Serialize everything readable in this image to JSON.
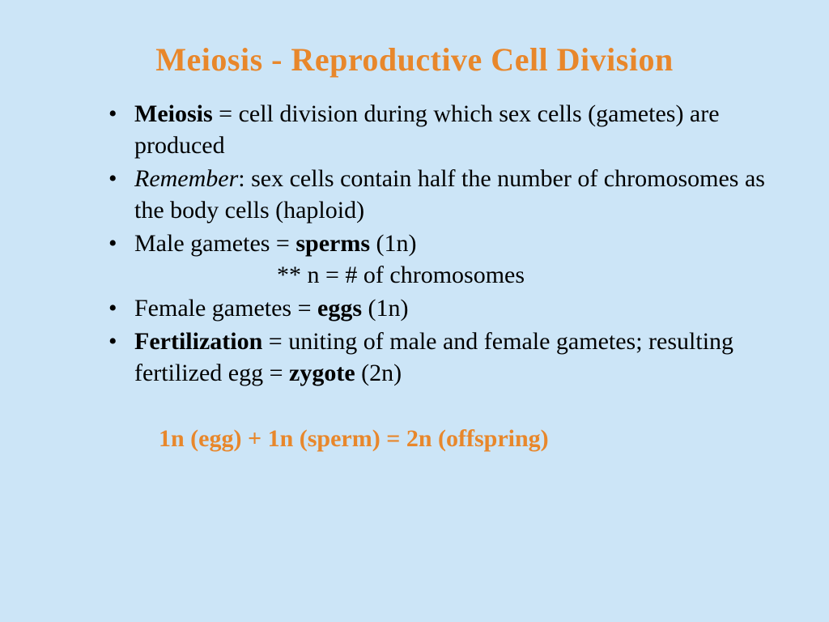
{
  "colors": {
    "background": "#cce5f7",
    "title": "#e8872b",
    "body_text": "#000000",
    "equation": "#e8872b"
  },
  "typography": {
    "title_fontsize": 40,
    "body_fontsize": 30,
    "font_family": "Times New Roman"
  },
  "title": "Meiosis  - Reproductive Cell Division",
  "bullets": [
    {
      "lead_bold": "Meiosis",
      "rest": " = cell division during which sex cells (gametes) are produced"
    },
    {
      "lead_italic": "Remember",
      "rest": ": sex cells contain half the number of chromosomes as the body cells (haploid)"
    },
    {
      "pre": "Male gametes = ",
      "bold": "sperms",
      "post": " (1n)",
      "subline": "** n = # of chromosomes"
    },
    {
      "pre": "Female gametes = ",
      "bold": "eggs",
      "post": " (1n)"
    },
    {
      "lead_bold": "Fertilization",
      "mid": " = uniting of male and female gametes; resulting fertilized egg = ",
      "bold2": "zygote",
      "post": " (2n)"
    }
  ],
  "equation": "1n (egg) + 1n (sperm) = 2n (offspring)"
}
